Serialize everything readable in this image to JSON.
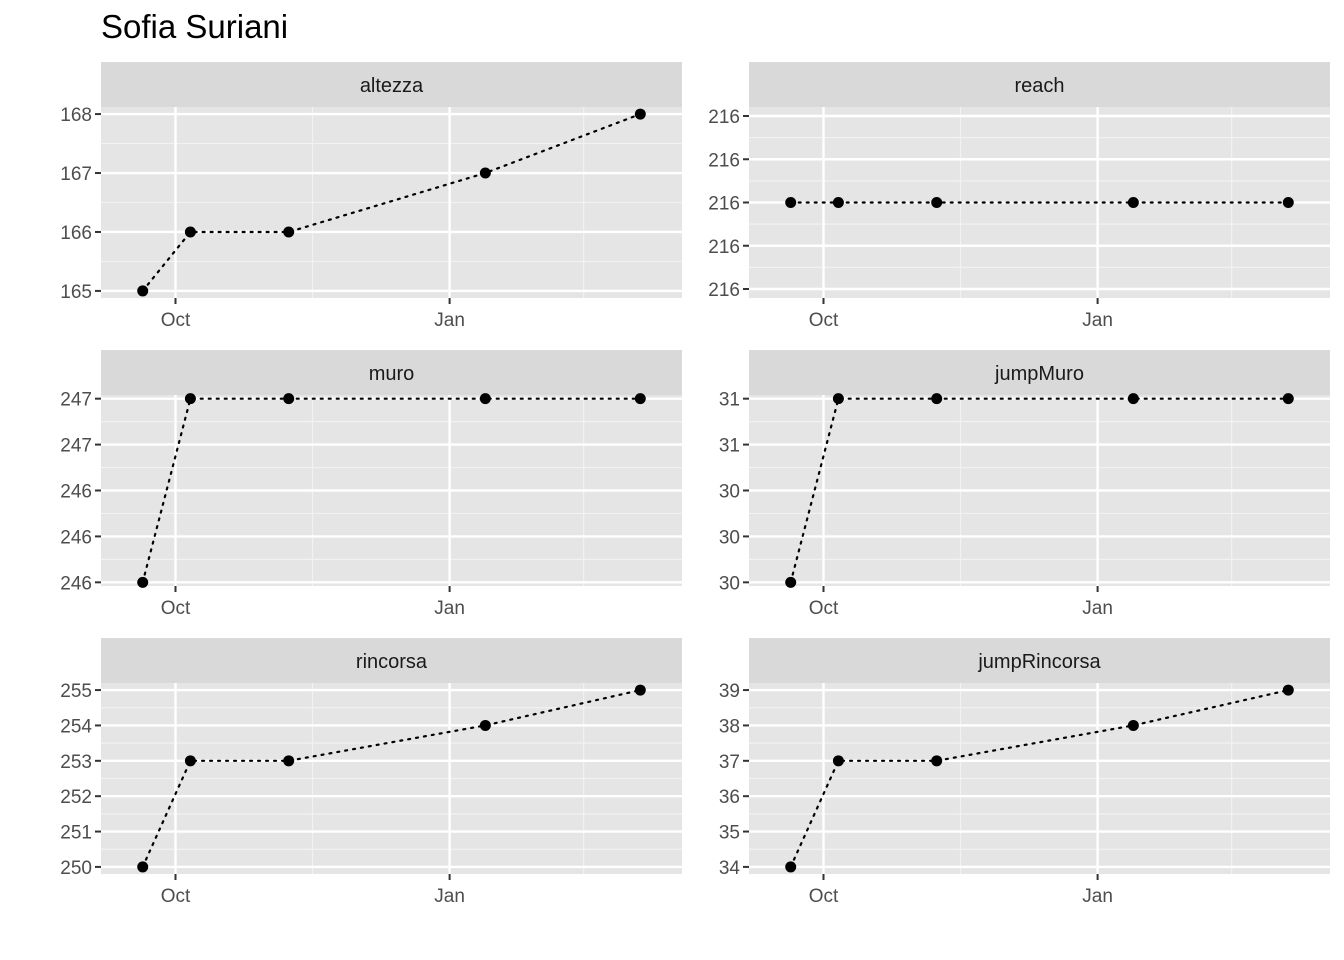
{
  "title": "Sofia Suriani",
  "chart_data": [
    {
      "type": "line",
      "strip": "altezza",
      "x": [
        "2021-09-20",
        "2021-10-06",
        "2021-11-08",
        "2022-01-13",
        "2022-03-06"
      ],
      "y": [
        165,
        166,
        166,
        167,
        168
      ],
      "y_ticks": [
        "165",
        "166",
        "167",
        "168"
      ],
      "ylim": [
        164.88,
        168.12
      ],
      "x_ticks": [
        "Oct",
        "Jan"
      ],
      "line_style": "dotted",
      "panel_background": "#e5e5e5",
      "grid": true
    },
    {
      "type": "line",
      "strip": "reach",
      "x": [
        "2021-09-20",
        "2021-10-06",
        "2021-11-08",
        "2022-01-13",
        "2022-03-06"
      ],
      "y": [
        216,
        216,
        216,
        216,
        216
      ],
      "y_ticks": [
        "216",
        "216",
        "216",
        "216",
        "216"
      ],
      "ylim": [
        0,
        1
      ],
      "x_ticks": [
        "Oct",
        "Jan"
      ],
      "line_style": "dotted",
      "panel_background": "#e5e5e5",
      "grid": true
    },
    {
      "type": "line",
      "strip": "muro",
      "x": [
        "2021-09-20",
        "2021-10-06",
        "2021-11-08",
        "2022-01-13",
        "2022-03-06"
      ],
      "y": [
        246,
        247,
        247,
        247,
        247
      ],
      "y_ticks": [
        "246",
        "246",
        "246",
        "247",
        "247"
      ],
      "ylim": [
        245.98,
        247.02
      ],
      "x_ticks": [
        "Oct",
        "Jan"
      ],
      "line_style": "dotted",
      "panel_background": "#e5e5e5",
      "grid": true
    },
    {
      "type": "line",
      "strip": "jumpMuro",
      "x": [
        "2021-09-20",
        "2021-10-06",
        "2021-11-08",
        "2022-01-13",
        "2022-03-06"
      ],
      "y": [
        30,
        31,
        31,
        31,
        31
      ],
      "y_ticks": [
        "30",
        "30",
        "30",
        "31",
        "31"
      ],
      "ylim": [
        29.98,
        31.02
      ],
      "x_ticks": [
        "Oct",
        "Jan"
      ],
      "line_style": "dotted",
      "panel_background": "#e5e5e5",
      "grid": true
    },
    {
      "type": "line",
      "strip": "rincorsa",
      "x": [
        "2021-09-20",
        "2021-10-06",
        "2021-11-08",
        "2022-01-13",
        "2022-03-06"
      ],
      "y": [
        250,
        253,
        253,
        254,
        255
      ],
      "y_ticks": [
        "250",
        "251",
        "252",
        "253",
        "254",
        "255"
      ],
      "ylim": [
        249.8,
        255.2
      ],
      "x_ticks": [
        "Oct",
        "Jan"
      ],
      "line_style": "dotted",
      "panel_background": "#e5e5e5",
      "grid": true
    },
    {
      "type": "line",
      "strip": "jumpRincorsa",
      "x": [
        "2021-09-20",
        "2021-10-06",
        "2021-11-08",
        "2022-01-13",
        "2022-03-06"
      ],
      "y": [
        34,
        37,
        37,
        38,
        39
      ],
      "y_ticks": [
        "34",
        "35",
        "36",
        "37",
        "38",
        "39"
      ],
      "ylim": [
        33.8,
        39.2
      ],
      "x_ticks": [
        "Oct",
        "Jan"
      ],
      "line_style": "dotted",
      "panel_background": "#e5e5e5",
      "grid": true
    }
  ]
}
